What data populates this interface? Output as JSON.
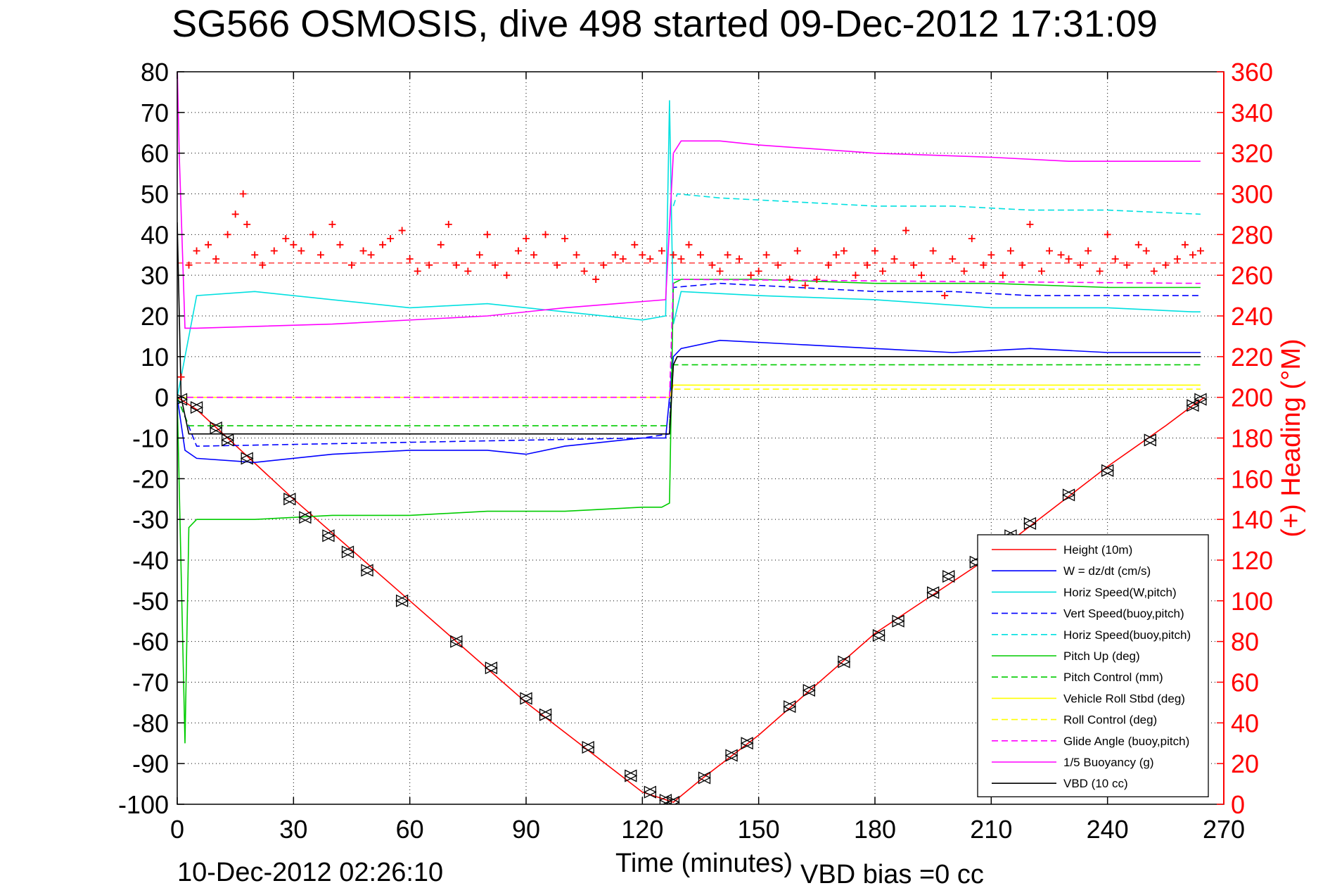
{
  "chart_data": {
    "type": "line",
    "title": "SG566 OSMOSIS, dive 498 started 09-Dec-2012 17:31:09",
    "xlabel": "Time (minutes)",
    "ylabel": "",
    "ylabel_right": "(+) Heading (°M)",
    "xlim": [
      0,
      270
    ],
    "ylim": [
      -100,
      80
    ],
    "ylim_right": [
      0,
      360
    ],
    "x_ticks": [
      "0",
      "30",
      "60",
      "90",
      "120",
      "150",
      "180",
      "210",
      "240",
      "270"
    ],
    "y_ticks": [
      "-100",
      "-90",
      "-80",
      "-70",
      "-60",
      "-50",
      "-40",
      "-30",
      "-20",
      "-10",
      "0",
      "10",
      "20",
      "30",
      "40",
      "50",
      "60",
      "70",
      "80"
    ],
    "y_right_ticks": [
      "0",
      "20",
      "40",
      "60",
      "80",
      "100",
      "120",
      "140",
      "160",
      "180",
      "200",
      "220",
      "240",
      "260",
      "280",
      "300",
      "320",
      "340",
      "360"
    ],
    "grid": true,
    "legend_position": "bottom-right",
    "footer_left": "10-Dec-2012 02:26:10",
    "footer_right": "VBD bias =0 cc",
    "series": [
      {
        "name": "Height (10m)",
        "color": "#ff0000",
        "style": "solid",
        "x": [
          0,
          5,
          13,
          30,
          60,
          90,
          120,
          128,
          135,
          150,
          180,
          210,
          240,
          255,
          262,
          265
        ],
        "y": [
          0,
          -3,
          -10,
          -25,
          -50,
          -75,
          -97,
          -99.5,
          -94,
          -83,
          -58,
          -39,
          -17,
          -7,
          -2,
          0
        ]
      },
      {
        "name": "W = dz/dt (cm/s)",
        "color": "#0000ff",
        "style": "solid",
        "x": [
          0,
          2,
          5,
          20,
          40,
          60,
          80,
          90,
          100,
          110,
          120,
          126,
          128,
          130,
          140,
          160,
          180,
          200,
          220,
          240,
          264
        ],
        "y": [
          0,
          -13,
          -15,
          -16,
          -14,
          -13,
          -13,
          -14,
          -12,
          -11,
          -10,
          -10,
          10,
          12,
          14,
          13,
          12,
          11,
          12,
          11,
          11
        ]
      },
      {
        "name": "Horiz Speed(W,pitch)",
        "color": "#00e0e0",
        "style": "solid",
        "x": [
          0,
          5,
          20,
          40,
          60,
          80,
          100,
          120,
          126,
          127,
          128,
          130,
          150,
          180,
          210,
          240,
          262,
          264
        ],
        "y": [
          0,
          25,
          26,
          24,
          22,
          23,
          21,
          19,
          20,
          73,
          18,
          26,
          25,
          24,
          22,
          22,
          21,
          21
        ]
      },
      {
        "name": "Vert Speed(buoy,pitch)",
        "color": "#0000ff",
        "style": "dashed",
        "x": [
          0,
          5,
          120,
          127,
          128,
          140,
          160,
          180,
          200,
          220,
          240,
          264
        ],
        "y": [
          0,
          -12,
          -10,
          -9,
          27,
          28,
          27,
          26,
          26,
          25,
          25,
          25
        ]
      },
      {
        "name": "Horiz Speed(buoy,pitch)",
        "color": "#00e0e0",
        "style": "dashed",
        "x": [
          128,
          129,
          140,
          160,
          180,
          200,
          220,
          240,
          264
        ],
        "y": [
          47,
          50,
          49,
          48,
          47,
          47,
          46,
          46,
          45
        ]
      },
      {
        "name": "Pitch Up (deg)",
        "color": "#00cc00",
        "style": "solid",
        "x": [
          0,
          2,
          3,
          5,
          20,
          40,
          60,
          80,
          100,
          120,
          125,
          127,
          128,
          130,
          150,
          180,
          210,
          240,
          264
        ],
        "y": [
          0,
          -85,
          -32,
          -30,
          -30,
          -29,
          -29,
          -28,
          -28,
          -27,
          -27,
          -26,
          28,
          29,
          29,
          28,
          28,
          27,
          27
        ]
      },
      {
        "name": "Pitch Control (mm)",
        "color": "#00cc00",
        "style": "dashed",
        "x": [
          0,
          3,
          120,
          127,
          128,
          264
        ],
        "y": [
          0,
          -7,
          -7,
          -7,
          8,
          8
        ]
      },
      {
        "name": "Vehicle Roll Stbd (deg)",
        "color": "#ffff00",
        "style": "solid",
        "x": [
          0,
          5,
          20,
          40,
          60,
          80,
          100,
          120,
          127,
          128,
          130,
          150,
          180,
          210,
          240,
          264
        ],
        "y": [
          0,
          0,
          0,
          0,
          0,
          0,
          0,
          0,
          0,
          3,
          3,
          3,
          3,
          3,
          3,
          3
        ]
      },
      {
        "name": "Roll Control (deg)",
        "color": "#ffff00",
        "style": "dashed",
        "x": [
          0,
          5,
          127,
          128,
          264
        ],
        "y": [
          0,
          0,
          0,
          2,
          2
        ]
      },
      {
        "name": "Glide Angle (buoy,pitch)",
        "color": "#ff00ff",
        "style": "dashed",
        "x": [
          0,
          5,
          127,
          128,
          264
        ],
        "y": [
          0,
          0,
          0,
          29,
          28
        ]
      },
      {
        "name": "1/5 Buoyancy (g)",
        "color": "#ff00ff",
        "style": "solid",
        "x": [
          0,
          0.5,
          2,
          5,
          40,
          80,
          100,
          126,
          128,
          130,
          140,
          150,
          180,
          210,
          230,
          240,
          255,
          264
        ],
        "y": [
          82,
          60,
          17,
          17,
          18,
          20,
          22,
          24,
          60,
          63,
          63,
          62,
          60,
          59,
          58,
          58,
          58,
          58
        ]
      },
      {
        "name": "VBD (10 cc)",
        "color": "#000000",
        "style": "solid",
        "x": [
          0,
          1,
          3,
          127,
          128,
          129,
          130,
          264
        ],
        "y": [
          43,
          0,
          -9,
          -9,
          8,
          10,
          10,
          10
        ]
      }
    ],
    "heading": {
      "name": "(+) Heading",
      "color": "#ff0000",
      "marker": "+",
      "reference_heading": 266,
      "t": [
        1,
        3,
        5,
        8,
        10,
        13,
        15,
        17,
        18,
        20,
        22,
        25,
        28,
        30,
        32,
        35,
        37,
        40,
        42,
        45,
        48,
        50,
        53,
        55,
        58,
        60,
        62,
        65,
        68,
        70,
        72,
        75,
        78,
        80,
        82,
        85,
        88,
        90,
        92,
        95,
        98,
        100,
        103,
        105,
        108,
        110,
        113,
        115,
        118,
        120,
        122,
        125,
        128,
        130,
        132,
        135,
        138,
        140,
        142,
        145,
        148,
        150,
        152,
        155,
        158,
        160,
        162,
        165,
        168,
        170,
        172,
        175,
        178,
        180,
        182,
        185,
        188,
        190,
        192,
        195,
        198,
        200,
        203,
        205,
        208,
        210,
        213,
        215,
        218,
        220,
        223,
        225,
        228,
        230,
        233,
        235,
        238,
        240,
        242,
        245,
        248,
        250,
        252,
        255,
        258,
        260,
        262,
        264
      ],
      "h": [
        210,
        265,
        272,
        275,
        268,
        280,
        290,
        300,
        285,
        270,
        265,
        272,
        278,
        275,
        272,
        280,
        270,
        285,
        275,
        265,
        272,
        270,
        275,
        278,
        282,
        268,
        262,
        265,
        275,
        285,
        265,
        262,
        270,
        280,
        265,
        260,
        272,
        278,
        270,
        280,
        265,
        278,
        270,
        262,
        258,
        265,
        270,
        268,
        275,
        270,
        268,
        272,
        270,
        268,
        275,
        270,
        265,
        262,
        270,
        268,
        260,
        262,
        270,
        265,
        258,
        272,
        255,
        258,
        265,
        270,
        272,
        260,
        265,
        272,
        262,
        268,
        282,
        265,
        260,
        272,
        250,
        268,
        262,
        278,
        265,
        270,
        260,
        272,
        265,
        285,
        262,
        272,
        270,
        268,
        265,
        272,
        262,
        280,
        268,
        265,
        275,
        272,
        262,
        265,
        268,
        275,
        270,
        272
      ]
    },
    "markers": {
      "style": "triangle-pairs",
      "color": "#000000",
      "x": [
        1,
        5,
        10,
        13,
        18,
        29,
        33,
        39,
        44,
        49,
        58,
        72,
        81,
        90,
        95,
        106,
        117,
        122,
        126,
        128,
        136,
        143,
        147,
        158,
        163,
        172,
        181,
        186,
        195,
        199,
        206,
        215,
        220,
        230,
        240,
        251,
        262,
        264
      ],
      "y": [
        -0.5,
        -2.5,
        -7.5,
        -10.5,
        -15,
        -25,
        -29.5,
        -34,
        -38,
        -42.5,
        -50,
        -60,
        -66.5,
        -74,
        -78,
        -86,
        -93,
        -97,
        -99,
        -99.5,
        -93.5,
        -88,
        -85,
        -76,
        -72,
        -65,
        -58.5,
        -55,
        -48,
        -44,
        -40.5,
        -34,
        -31,
        -24,
        -18,
        -10.5,
        -2,
        -0.5
      ]
    }
  }
}
